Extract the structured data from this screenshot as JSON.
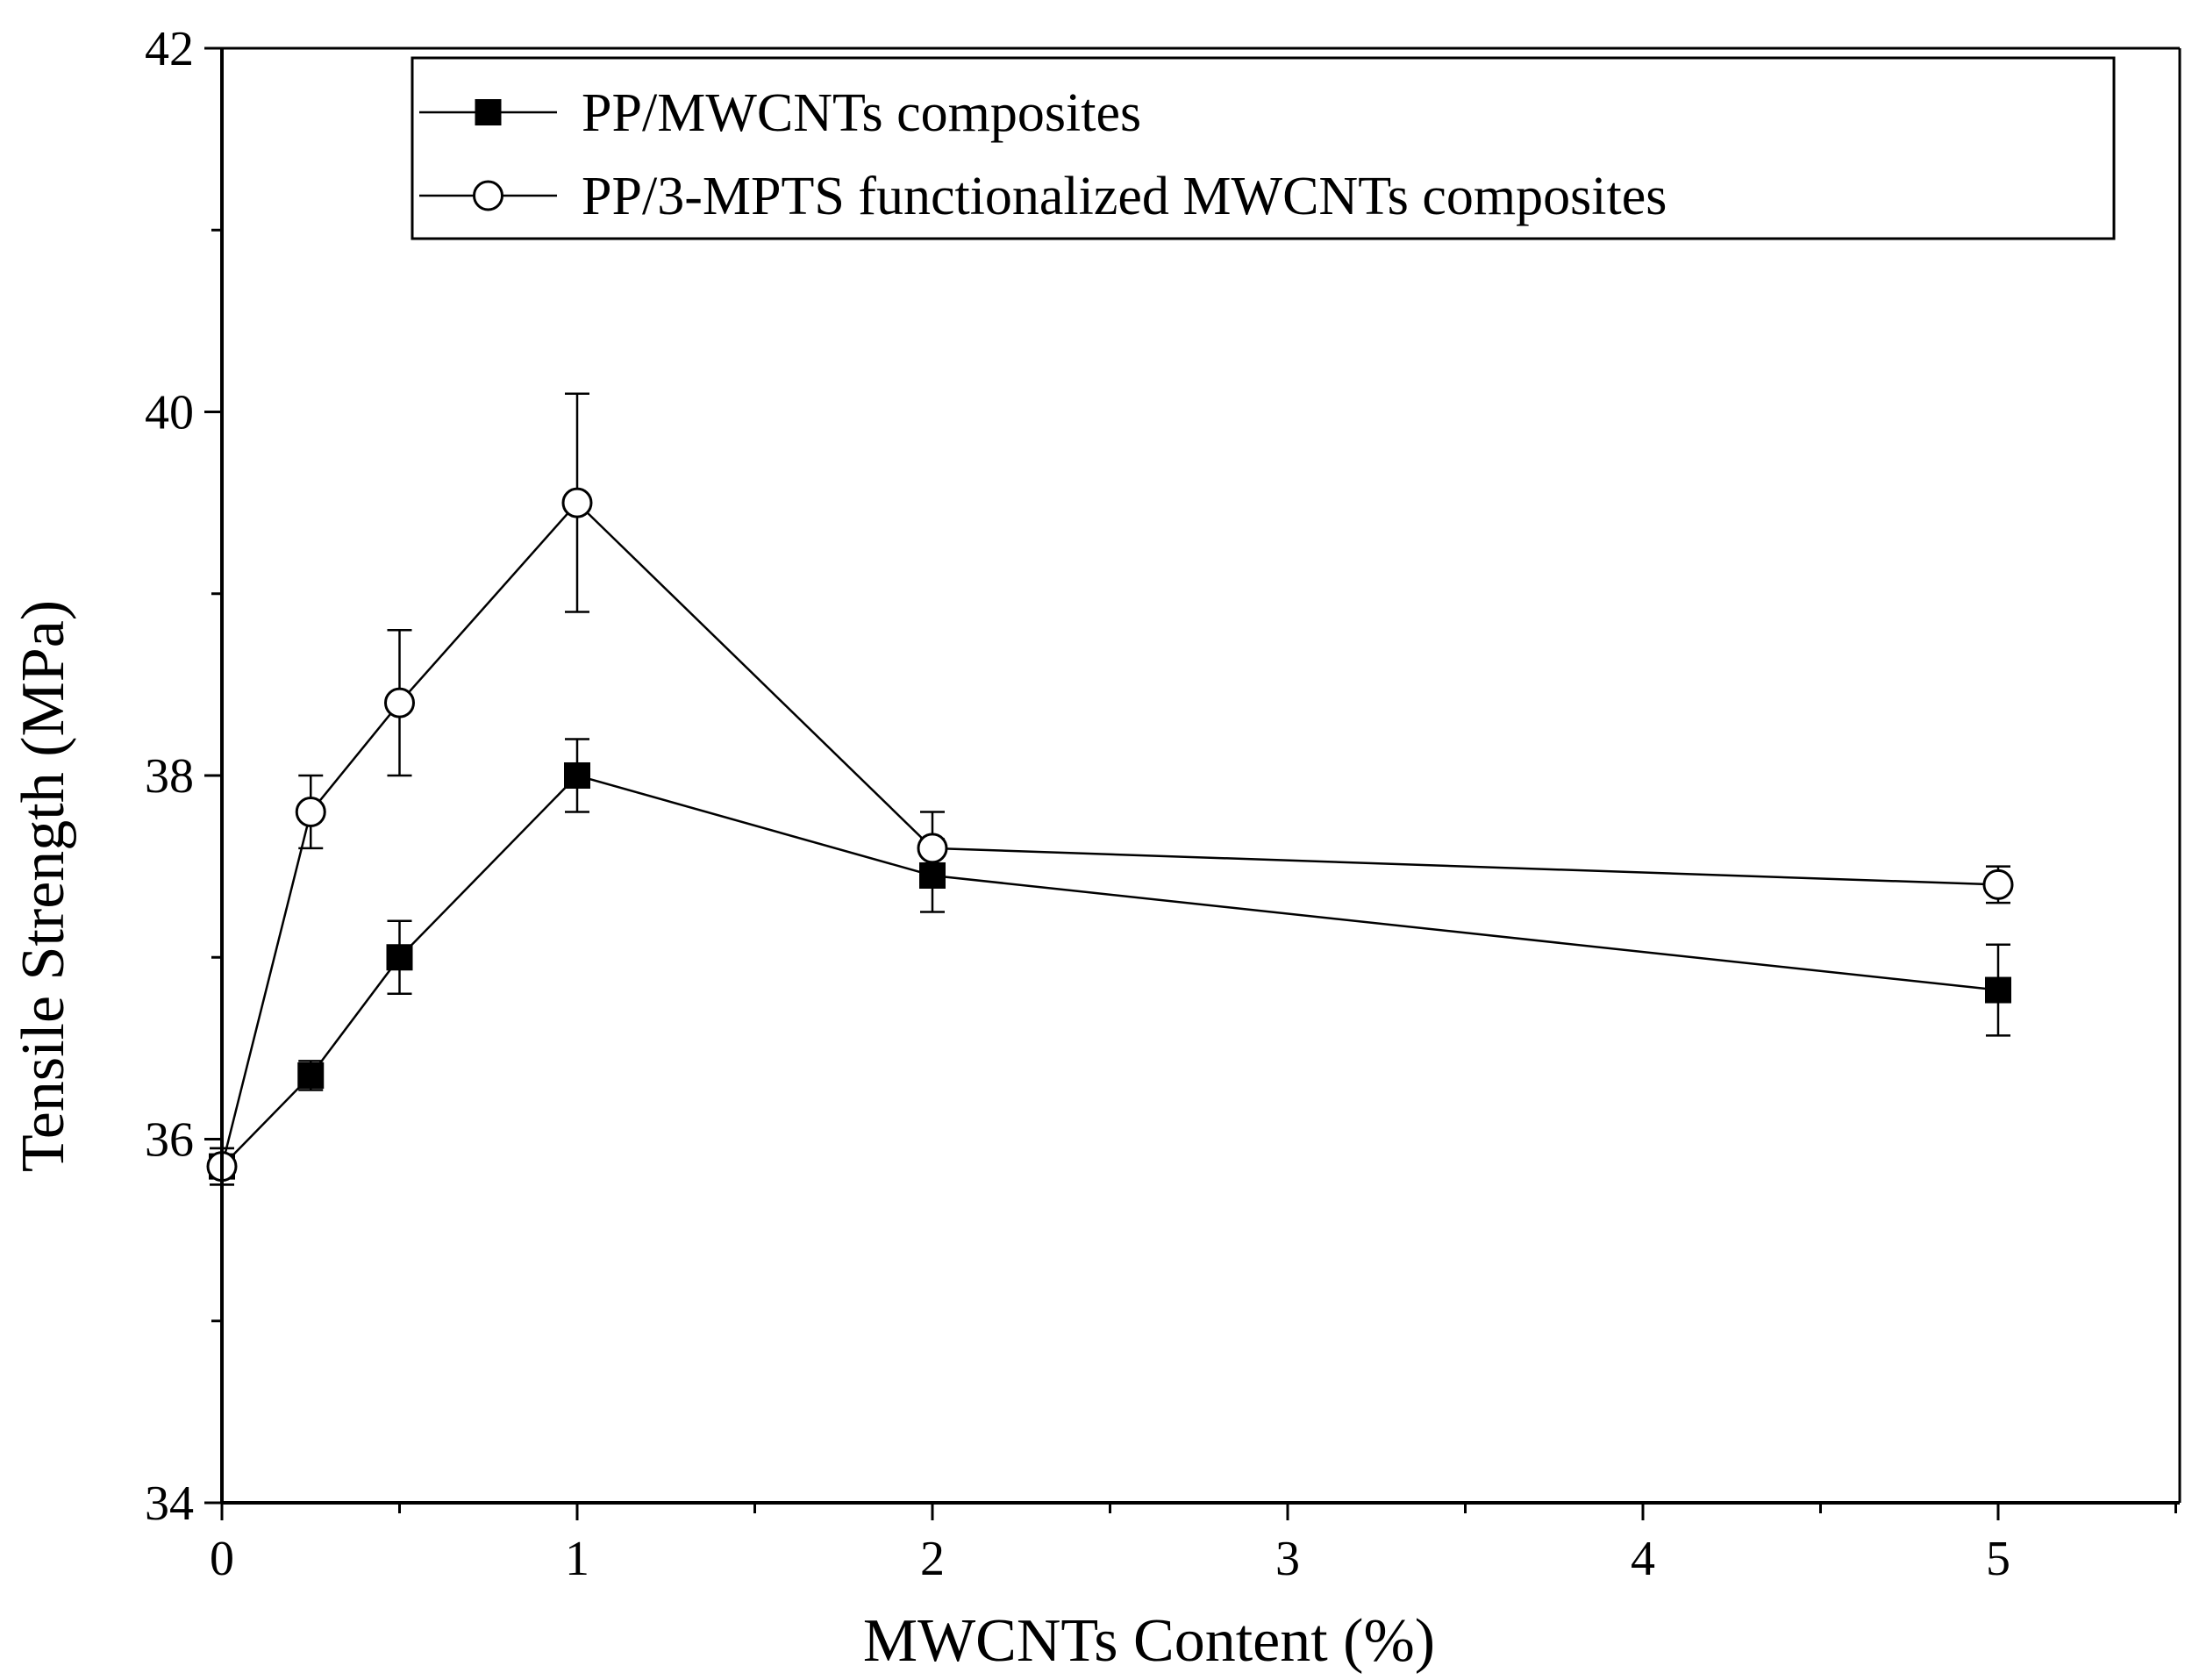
{
  "chart_data": {
    "type": "line",
    "xlabel": "MWCNTs Content (%)",
    "ylabel": "Tensile Strength (MPa)",
    "ylim": [
      34,
      42
    ],
    "x_tick_labels": [
      "0",
      "1",
      "2",
      "3",
      "4",
      "5"
    ],
    "y_tick_labels": [
      "34",
      "36",
      "38",
      "40",
      "42"
    ],
    "grid": false,
    "legend_position": "top-right",
    "series": [
      {
        "name": "PP/MWCNTs composites",
        "marker": "filled-square",
        "color": "#000000",
        "points": [
          {
            "x": "0",
            "y": 35.85,
            "err": 0.1
          },
          {
            "x": "0.25",
            "y": 36.35,
            "err": 0.08
          },
          {
            "x": "0.5",
            "y": 37.0,
            "err": 0.2
          },
          {
            "x": "1",
            "y": 38.0,
            "err": 0.2
          },
          {
            "x": "2",
            "y": 37.45,
            "err": 0.2
          },
          {
            "x": "5",
            "y": 36.82,
            "err": 0.25
          }
        ]
      },
      {
        "name": "PP/3-MPTS functionalized MWCNTs composites",
        "marker": "open-circle",
        "color": "#000000",
        "points": [
          {
            "x": "0",
            "y": 35.85,
            "err": 0.1
          },
          {
            "x": "0.25",
            "y": 37.8,
            "err": 0.2
          },
          {
            "x": "0.5",
            "y": 38.4,
            "err": 0.4
          },
          {
            "x": "1",
            "y": 39.5,
            "err": 0.6
          },
          {
            "x": "2",
            "y": 37.6,
            "err": 0.2
          },
          {
            "x": "5",
            "y": 37.4,
            "err": 0.1
          }
        ]
      }
    ]
  }
}
